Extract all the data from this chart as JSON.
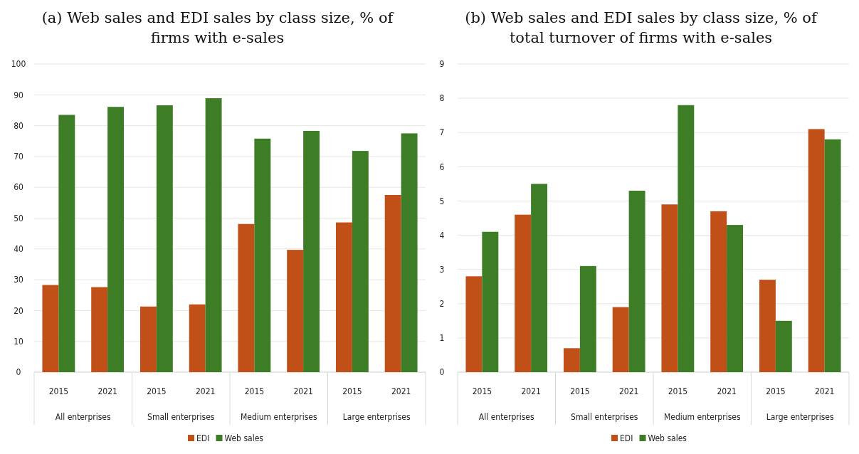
{
  "chart_data": [
    {
      "type": "bar",
      "title": "(a) Web sales and EDI sales by class size, % of firms with e-sales",
      "categories": [
        "2015",
        "2021",
        "2015",
        "2021",
        "2015",
        "2021",
        "2015",
        "2021"
      ],
      "series": [
        {
          "name": "EDI",
          "color": "#c05018",
          "values": [
            28.3,
            27.6,
            21.3,
            22.0,
            48.1,
            39.7,
            48.6,
            57.5
          ]
        },
        {
          "name": "Web sales",
          "color": "#3c7d25",
          "values": [
            83.5,
            86.1,
            86.6,
            88.9,
            75.8,
            78.3,
            71.8,
            77.5
          ]
        }
      ],
      "annotations": [
        "All enterprises",
        "Small enterprises",
        "Medium enterprises",
        "Large enterprises"
      ],
      "ylim": [
        0,
        100
      ],
      "yticks": [
        0,
        10,
        20,
        30,
        40,
        50,
        60,
        70,
        80,
        90,
        100
      ],
      "grid": "y",
      "legend": "bottom"
    },
    {
      "type": "bar",
      "title": "(b) Web sales and EDI sales by class size, % of total turnover of firms with e-sales",
      "categories": [
        "2015",
        "2021",
        "2015",
        "2021",
        "2015",
        "2021",
        "2015",
        "2021"
      ],
      "series": [
        {
          "name": "EDI",
          "color": "#c05018",
          "values": [
            2.8,
            4.6,
            0.7,
            1.9,
            4.9,
            4.7,
            2.7,
            7.1
          ]
        },
        {
          "name": "Web sales",
          "color": "#3c7d25",
          "values": [
            4.1,
            5.5,
            3.1,
            5.3,
            7.8,
            4.3,
            1.5,
            6.8
          ]
        }
      ],
      "annotations": [
        "All enterprises",
        "Small enterprises",
        "Medium enterprises",
        "Large enterprises"
      ],
      "ylim": [
        0,
        9
      ],
      "yticks": [
        0,
        1,
        2,
        3,
        4,
        5,
        6,
        7,
        8,
        9
      ],
      "grid": "y",
      "legend": "bottom"
    }
  ]
}
